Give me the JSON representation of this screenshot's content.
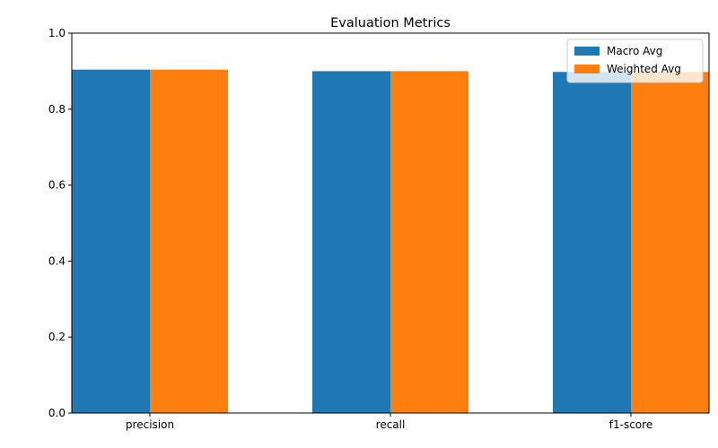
{
  "chart_data": {
    "type": "bar",
    "title": "Evaluation Metrics",
    "xlabel": "",
    "ylabel": "",
    "categories": [
      "precision",
      "recall",
      "f1-score"
    ],
    "series": [
      {
        "name": "Macro Avg",
        "values": [
          0.904,
          0.9,
          0.898
        ],
        "color": "#1f77b4"
      },
      {
        "name": "Weighted Avg",
        "values": [
          0.904,
          0.9,
          0.898
        ],
        "color": "#ff7f0e"
      }
    ],
    "ylim": [
      0,
      1
    ],
    "yticks": [
      0,
      0.2,
      0.4,
      0.6,
      0.8,
      1
    ],
    "ytick_labels": [
      "0.0",
      "0.2",
      "0.4",
      "0.6",
      "0.8",
      "1.0"
    ],
    "grid": false,
    "legend_position": "top-right"
  }
}
